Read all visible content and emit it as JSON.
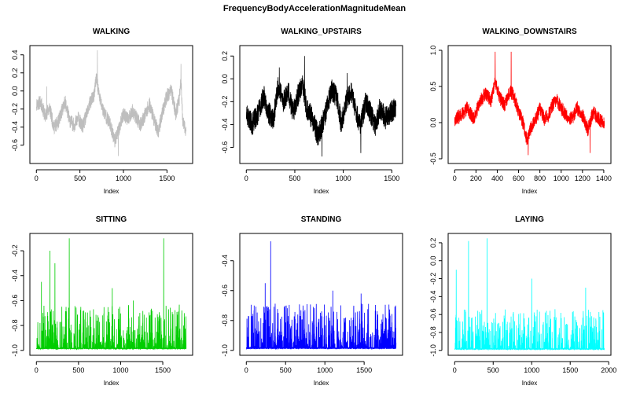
{
  "title": "FrequencyBodyAccelerationMagnitudeMean",
  "chart_data": [
    {
      "type": "line",
      "title": "WALKING",
      "xlabel": "Index",
      "color": "#bebebe",
      "n": 1720,
      "xlim": [
        0,
        1720
      ],
      "ylim": [
        -0.75,
        0.45
      ],
      "xticks": [
        0,
        500,
        1000,
        1500
      ],
      "yticks": [
        -0.6,
        -0.4,
        -0.2,
        0.0,
        0.2,
        0.4
      ],
      "ytick_labels": [
        "-0.6",
        "-0.4",
        "-0.2",
        "0.0",
        "0.2",
        "0.4"
      ],
      "shape": [
        [
          0,
          -0.15
        ],
        [
          50,
          -0.12
        ],
        [
          100,
          -0.28
        ],
        [
          150,
          -0.18
        ],
        [
          200,
          -0.4
        ],
        [
          250,
          -0.35
        ],
        [
          300,
          -0.2
        ],
        [
          330,
          -0.12
        ],
        [
          380,
          -0.32
        ],
        [
          430,
          -0.38
        ],
        [
          480,
          -0.3
        ],
        [
          530,
          -0.4
        ],
        [
          580,
          -0.25
        ],
        [
          620,
          -0.12
        ],
        [
          660,
          -0.05
        ],
        [
          690,
          0.15
        ],
        [
          720,
          -0.05
        ],
        [
          760,
          -0.2
        ],
        [
          800,
          -0.28
        ],
        [
          850,
          -0.38
        ],
        [
          900,
          -0.55
        ],
        [
          940,
          -0.45
        ],
        [
          970,
          -0.35
        ],
        [
          1000,
          -0.25
        ],
        [
          1050,
          -0.32
        ],
        [
          1100,
          -0.22
        ],
        [
          1150,
          -0.3
        ],
        [
          1200,
          -0.38
        ],
        [
          1250,
          -0.25
        ],
        [
          1300,
          -0.15
        ],
        [
          1350,
          -0.32
        ],
        [
          1400,
          -0.45
        ],
        [
          1450,
          -0.22
        ],
        [
          1500,
          -0.05
        ],
        [
          1550,
          0.0
        ],
        [
          1600,
          -0.25
        ],
        [
          1640,
          -0.1
        ],
        [
          1660,
          0.15
        ],
        [
          1680,
          -0.35
        ],
        [
          1720,
          -0.45
        ]
      ],
      "peaks": [
        [
          700,
          0.45
        ],
        [
          1660,
          0.3
        ],
        [
          120,
          0.05
        ],
        [
          940,
          -0.72
        ]
      ],
      "noise": 0.08,
      "seed": 11
    },
    {
      "type": "line",
      "title": "WALKING_UPSTAIRS",
      "xlabel": "Index",
      "color": "#000000",
      "n": 1544,
      "xlim": [
        0,
        1544
      ],
      "ylim": [
        -0.7,
        0.25
      ],
      "xticks": [
        0,
        500,
        1000,
        1500
      ],
      "yticks": [
        -0.6,
        -0.4,
        -0.2,
        0.0,
        0.2
      ],
      "ytick_labels": [
        "-0.6",
        "-0.4",
        "-0.2",
        "0.0",
        "0.2"
      ],
      "shape": [
        [
          0,
          -0.3
        ],
        [
          60,
          -0.4
        ],
        [
          120,
          -0.3
        ],
        [
          180,
          -0.15
        ],
        [
          230,
          -0.3
        ],
        [
          280,
          -0.35
        ],
        [
          330,
          -0.05
        ],
        [
          380,
          -0.2
        ],
        [
          430,
          -0.1
        ],
        [
          480,
          -0.3
        ],
        [
          530,
          -0.15
        ],
        [
          580,
          -0.05
        ],
        [
          620,
          -0.25
        ],
        [
          680,
          -0.35
        ],
        [
          740,
          -0.5
        ],
        [
          780,
          -0.4
        ],
        [
          830,
          -0.25
        ],
        [
          880,
          -0.1
        ],
        [
          930,
          -0.15
        ],
        [
          980,
          -0.4
        ],
        [
          1030,
          -0.2
        ],
        [
          1080,
          -0.1
        ],
        [
          1130,
          -0.3
        ],
        [
          1180,
          -0.4
        ],
        [
          1230,
          -0.2
        ],
        [
          1280,
          -0.3
        ],
        [
          1330,
          -0.4
        ],
        [
          1380,
          -0.25
        ],
        [
          1430,
          -0.35
        ],
        [
          1480,
          -0.3
        ],
        [
          1544,
          -0.25
        ]
      ],
      "peaks": [
        [
          600,
          0.2
        ],
        [
          340,
          0.1
        ],
        [
          1040,
          0.05
        ],
        [
          780,
          -0.68
        ],
        [
          1180,
          -0.65
        ]
      ],
      "noise": 0.1,
      "seed": 23
    },
    {
      "type": "line",
      "title": "WALKING_DOWNSTAIRS",
      "xlabel": "Index",
      "color": "#ff0000",
      "n": 1406,
      "xlim": [
        0,
        1406
      ],
      "ylim": [
        -0.5,
        1.0
      ],
      "xticks": [
        0,
        200,
        400,
        600,
        800,
        1000,
        1200,
        1400
      ],
      "yticks": [
        -0.5,
        0.0,
        0.5,
        1.0
      ],
      "ytick_labels": [
        "-0.5",
        "0.0",
        "0.5",
        "1.0"
      ],
      "shape": [
        [
          0,
          0.05
        ],
        [
          60,
          0.1
        ],
        [
          120,
          0.2
        ],
        [
          180,
          0.05
        ],
        [
          240,
          0.3
        ],
        [
          290,
          0.4
        ],
        [
          340,
          0.3
        ],
        [
          380,
          0.55
        ],
        [
          420,
          0.35
        ],
        [
          470,
          0.25
        ],
        [
          520,
          0.45
        ],
        [
          560,
          0.35
        ],
        [
          600,
          0.15
        ],
        [
          640,
          0.0
        ],
        [
          680,
          -0.25
        ],
        [
          720,
          -0.05
        ],
        [
          760,
          0.05
        ],
        [
          800,
          0.2
        ],
        [
          840,
          0.05
        ],
        [
          880,
          0.1
        ],
        [
          920,
          0.25
        ],
        [
          960,
          0.3
        ],
        [
          1000,
          0.2
        ],
        [
          1050,
          0.1
        ],
        [
          1100,
          0.05
        ],
        [
          1150,
          0.2
        ],
        [
          1200,
          0.1
        ],
        [
          1250,
          -0.1
        ],
        [
          1300,
          0.15
        ],
        [
          1350,
          0.05
        ],
        [
          1406,
          0.0
        ]
      ],
      "peaks": [
        [
          380,
          0.98
        ],
        [
          530,
          0.98
        ],
        [
          690,
          -0.45
        ],
        [
          1270,
          -0.42
        ]
      ],
      "noise": 0.1,
      "seed": 37
    },
    {
      "type": "line",
      "title": "SITTING",
      "xlabel": "Index",
      "color": "#00cd00",
      "n": 1777,
      "xlim": [
        0,
        1777
      ],
      "ylim": [
        -1.0,
        -0.1
      ],
      "xticks": [
        0,
        500,
        1000,
        1500
      ],
      "yticks": [
        -1.0,
        -0.8,
        -0.6,
        -0.4,
        -0.2
      ],
      "ytick_labels": [
        "-1.0",
        "-0.8",
        "-0.6",
        "-0.4",
        "-0.2"
      ],
      "baseline": -0.99,
      "spike_prob": 0.3,
      "spike_max": 0.35,
      "peaks": [
        [
          390,
          -0.1
        ],
        [
          1510,
          -0.1
        ],
        [
          160,
          -0.2
        ],
        [
          220,
          -0.3
        ],
        [
          60,
          -0.45
        ],
        [
          900,
          -0.5
        ],
        [
          1150,
          -0.6
        ]
      ],
      "seed": 51
    },
    {
      "type": "line",
      "title": "STANDING",
      "xlabel": "Index",
      "color": "#0000ff",
      "n": 1906,
      "xlim": [
        0,
        1906
      ],
      "ylim": [
        -1.0,
        -0.25
      ],
      "xticks": [
        0,
        500,
        1000,
        1500
      ],
      "yticks": [
        -1.0,
        -0.8,
        -0.6,
        -0.4
      ],
      "ytick_labels": [
        "-1.0",
        "-0.8",
        "-0.6",
        "-0.4"
      ],
      "baseline": -0.99,
      "spike_prob": 0.32,
      "spike_max": 0.3,
      "peaks": [
        [
          310,
          -0.27
        ],
        [
          240,
          -0.55
        ],
        [
          1100,
          -0.6
        ],
        [
          1460,
          -0.62
        ],
        [
          100,
          -0.7
        ]
      ],
      "seed": 67
    },
    {
      "type": "line",
      "title": "LAYING",
      "xlabel": "Index",
      "color": "#00ffff",
      "n": 1944,
      "xlim": [
        0,
        1944
      ],
      "ylim": [
        -1.0,
        0.25
      ],
      "xticks": [
        0,
        500,
        1000,
        1500,
        2000
      ],
      "yticks": [
        -1.0,
        -0.8,
        -0.6,
        -0.4,
        -0.2,
        0.0,
        0.2
      ],
      "ytick_labels": [
        "-1.0",
        "-0.8",
        "-0.6",
        "-0.4",
        "-0.2",
        "0.0",
        "0.2"
      ],
      "baseline": -0.99,
      "spike_prob": 0.22,
      "spike_max": 0.45,
      "peaks": [
        [
          180,
          0.22
        ],
        [
          420,
          0.25
        ],
        [
          20,
          -0.1
        ],
        [
          1000,
          -0.2
        ],
        [
          1700,
          -0.3
        ]
      ],
      "seed": 83
    }
  ]
}
